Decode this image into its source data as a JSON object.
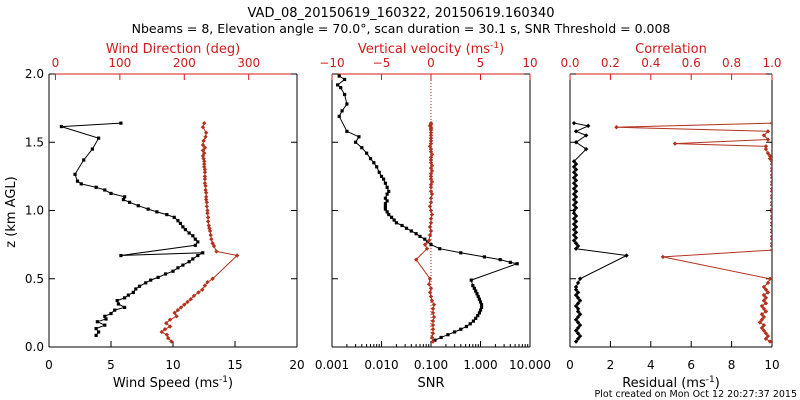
{
  "header": {
    "title_line1": "VAD_08_20150619_160322, 20150619.160340",
    "title_line2": "Nbeams = 8, Elevation angle = 70.0°, scan duration = 30.1 s, SNR Threshold = 0.008"
  },
  "footer": {
    "plot_created": "Plot created on Mon Oct 12 20:27:37 2015"
  },
  "colors": {
    "black_series": "#000000",
    "red_series": "#b3331f",
    "red_axis": "#d11a1a",
    "axis": "#000000"
  },
  "y_axis": {
    "label": "z (km AGL)",
    "range": [
      0.0,
      2.0
    ],
    "ticks": [
      0.0,
      0.5,
      1.0,
      1.5,
      2.0
    ],
    "tick_labels": [
      "0.0",
      "0.5",
      "1.0",
      "1.5",
      "2.0"
    ]
  },
  "chart_data": [
    {
      "type": "line",
      "id": "wind",
      "bottom_axis": {
        "label": "Wind Speed (ms",
        "label_sup": "-1",
        "label_close": ")",
        "range": [
          0,
          20
        ],
        "ticks": [
          0,
          5,
          10,
          15,
          20
        ],
        "tick_labels": [
          "0",
          "5",
          "10",
          "15",
          "20"
        ]
      },
      "top_axis": {
        "label": "Wind Direction (deg)",
        "range": [
          -10,
          375
        ],
        "ticks": [
          0,
          100,
          200,
          300
        ],
        "tick_labels": [
          "0",
          "100",
          "200",
          "300"
        ]
      },
      "series": [
        {
          "name": "Wind Speed",
          "axis": "bottom",
          "color": "black",
          "marker": "square",
          "x": [
            3.8,
            4.0,
            3.8,
            4.5,
            3.9,
            4.6,
            4.5,
            5.0,
            5.3,
            6.1,
            5.6,
            5.5,
            6.1,
            6.4,
            6.8,
            7.0,
            7.3,
            7.8,
            8.2,
            8.8,
            9.4,
            10.0,
            10.4,
            10.8,
            11.3,
            11.6,
            12.0,
            12.4,
            5.8,
            11.8,
            12.0,
            11.8,
            11.6,
            11.3,
            11.0,
            10.8,
            10.6,
            10.4,
            10.1,
            9.5,
            8.7,
            8.0,
            7.2,
            6.5,
            6.0,
            6.1,
            5.0,
            4.5,
            3.8,
            2.6,
            2.3,
            2.1,
            2.8,
            3.5,
            4.0,
            1.0,
            5.8
          ],
          "y": [
            0.085,
            0.11,
            0.135,
            0.16,
            0.185,
            0.205,
            0.225,
            0.245,
            0.27,
            0.29,
            0.315,
            0.34,
            0.36,
            0.38,
            0.4,
            0.425,
            0.445,
            0.47,
            0.49,
            0.51,
            0.535,
            0.555,
            0.58,
            0.6,
            0.625,
            0.645,
            0.67,
            0.69,
            0.67,
            0.745,
            0.77,
            0.79,
            0.815,
            0.835,
            0.86,
            0.88,
            0.905,
            0.925,
            0.95,
            0.97,
            0.99,
            1.01,
            1.035,
            1.06,
            1.08,
            1.1,
            1.125,
            1.15,
            1.17,
            1.195,
            1.215,
            1.265,
            1.37,
            1.45,
            1.53,
            1.615,
            1.64
          ]
        },
        {
          "name": "Wind Direction",
          "axis": "top",
          "color": "red",
          "marker": "diamond",
          "x": [
            180,
            175,
            173,
            165,
            170,
            178,
            172,
            178,
            188,
            185,
            190,
            195,
            200,
            205,
            210,
            215,
            222,
            228,
            232,
            236,
            244,
            282,
            250,
            246,
            244,
            242,
            241,
            240,
            239,
            238,
            237,
            237,
            236,
            236,
            235,
            235,
            234,
            234,
            234,
            233,
            233,
            232,
            232,
            232,
            232,
            232,
            231,
            231,
            231,
            230,
            229,
            231,
            229,
            232,
            229,
            230,
            233,
            234,
            229,
            231
          ],
          "y": [
            0.04,
            0.065,
            0.09,
            0.11,
            0.13,
            0.15,
            0.175,
            0.2,
            0.225,
            0.25,
            0.27,
            0.29,
            0.31,
            0.33,
            0.35,
            0.375,
            0.4,
            0.42,
            0.45,
            0.475,
            0.5,
            0.67,
            0.7,
            0.74,
            0.76,
            0.79,
            0.82,
            0.85,
            0.87,
            0.89,
            0.92,
            0.95,
            0.98,
            1.0,
            1.03,
            1.06,
            1.08,
            1.1,
            1.13,
            1.15,
            1.18,
            1.2,
            1.23,
            1.25,
            1.28,
            1.3,
            1.32,
            1.34,
            1.36,
            1.38,
            1.4,
            1.42,
            1.44,
            1.46,
            1.48,
            1.51,
            1.54,
            1.57,
            1.61,
            1.64
          ]
        }
      ]
    },
    {
      "type": "line",
      "id": "snr",
      "bottom_axis": {
        "label": "SNR",
        "scale": "log",
        "range": [
          0.001,
          10
        ],
        "ticks": [
          0.001,
          0.01,
          0.1,
          1,
          10
        ],
        "tick_labels": [
          "0.001",
          "0.010",
          "0.100",
          "1.000",
          "10.000"
        ]
      },
      "top_axis": {
        "label": "Vertical velocity (ms",
        "label_sup": "-1",
        "label_close": ")",
        "range": [
          -10,
          10
        ],
        "ticks": [
          -10,
          -5,
          0,
          5,
          10
        ],
        "tick_labels": [
          "−10",
          "−5",
          "0",
          "5",
          "10"
        ]
      },
      "series": [
        {
          "name": "SNR",
          "axis": "bottom",
          "color": "black",
          "marker": "square",
          "x": [
            0.12,
            0.16,
            0.22,
            0.3,
            0.4,
            0.52,
            0.62,
            0.72,
            0.8,
            0.88,
            0.95,
            1.0,
            1.05,
            1.05,
            1.0,
            0.95,
            0.9,
            0.85,
            0.8,
            0.75,
            0.7,
            0.65,
            5.5,
            4.0,
            2.5,
            1.2,
            0.4,
            0.15,
            0.1,
            0.085,
            0.075,
            0.06,
            0.05,
            0.04,
            0.032,
            0.026,
            0.02,
            0.018,
            0.016,
            0.014,
            0.013,
            0.012,
            0.012,
            0.012,
            0.013,
            0.012,
            0.013,
            0.014,
            0.013,
            0.012,
            0.011,
            0.01,
            0.009,
            0.008,
            0.007,
            0.006,
            0.005,
            0.004,
            0.003,
            0.0035,
            0.002,
            0.0014,
            0.0016,
            0.002,
            0.0018,
            0.0015,
            0.0013,
            0.0018,
            0.0014
          ],
          "y": [
            0.05,
            0.07,
            0.09,
            0.11,
            0.13,
            0.15,
            0.17,
            0.19,
            0.21,
            0.23,
            0.25,
            0.27,
            0.29,
            0.31,
            0.33,
            0.35,
            0.37,
            0.39,
            0.41,
            0.43,
            0.45,
            0.49,
            0.61,
            0.62,
            0.64,
            0.66,
            0.69,
            0.72,
            0.75,
            0.77,
            0.79,
            0.81,
            0.83,
            0.85,
            0.87,
            0.89,
            0.91,
            0.93,
            0.95,
            0.97,
            0.99,
            1.01,
            1.03,
            1.05,
            1.07,
            1.09,
            1.12,
            1.14,
            1.17,
            1.2,
            1.23,
            1.25,
            1.28,
            1.32,
            1.35,
            1.38,
            1.42,
            1.46,
            1.5,
            1.54,
            1.58,
            1.69,
            1.73,
            1.78,
            1.85,
            1.9,
            1.92,
            1.96,
            1.985
          ]
        },
        {
          "name": "Vertical velocity",
          "axis": "top",
          "color": "red",
          "marker": "diamond",
          "x": [
            0.2,
            0.1,
            0.2,
            0.2,
            0.2,
            0.2,
            0.3,
            0.2,
            0.2,
            0.3,
            0.1,
            0.0,
            -0.1,
            0.0,
            -0.2,
            -0.1,
            -1.5,
            -0.4,
            -0.6,
            -0.2,
            -0.1,
            0.0,
            -0.1,
            0.0,
            0.0,
            0.1,
            0.0,
            -0.1,
            0.0,
            0.0,
            0.1,
            0.0,
            0.0,
            0.0,
            0.1,
            0.0,
            0.0,
            0.0,
            0.1,
            0.0,
            0.1,
            0.0,
            0.0,
            0.0,
            0.1,
            0.0,
            0.0,
            -0.1,
            0.0,
            0.0,
            0.0,
            0.0,
            0.0,
            0.0,
            0.0,
            0.0,
            -0.1,
            0.0,
            0.0
          ],
          "y": [
            0.04,
            0.07,
            0.1,
            0.13,
            0.16,
            0.19,
            0.22,
            0.25,
            0.28,
            0.31,
            0.34,
            0.37,
            0.4,
            0.43,
            0.46,
            0.5,
            0.64,
            0.72,
            0.75,
            0.78,
            0.82,
            0.85,
            0.88,
            0.91,
            0.94,
            0.97,
            1.0,
            1.03,
            1.06,
            1.09,
            1.12,
            1.14,
            1.17,
            1.19,
            1.21,
            1.23,
            1.25,
            1.27,
            1.29,
            1.31,
            1.33,
            1.35,
            1.37,
            1.39,
            1.41,
            1.43,
            1.45,
            1.47,
            1.49,
            1.51,
            1.53,
            1.55,
            1.57,
            1.59,
            1.6,
            1.61,
            1.62,
            1.63,
            1.64
          ]
        }
      ]
    },
    {
      "type": "line",
      "id": "corr",
      "bottom_axis": {
        "label": "Residual (ms",
        "label_sup": "-1",
        "label_close": ")",
        "range": [
          0,
          10
        ],
        "ticks": [
          0,
          2,
          4,
          6,
          8,
          10
        ],
        "tick_labels": [
          "0",
          "2",
          "4",
          "6",
          "8",
          "10"
        ]
      },
      "top_axis": {
        "label": "Correlation",
        "range": [
          0,
          1
        ],
        "ticks": [
          0,
          0.2,
          0.4,
          0.6,
          0.8,
          1.0
        ],
        "tick_labels": [
          "0.0",
          "0.2",
          "0.4",
          "0.6",
          "0.8",
          "1.0"
        ]
      },
      "series": [
        {
          "name": "Residual",
          "axis": "bottom",
          "color": "black",
          "marker": "diamond",
          "x": [
            0.3,
            0.4,
            0.5,
            0.4,
            0.3,
            0.4,
            0.5,
            0.4,
            0.3,
            0.4,
            0.5,
            0.4,
            0.4,
            0.3,
            0.4,
            0.5,
            0.4,
            0.3,
            0.4,
            0.3,
            0.3,
            0.4,
            0.5,
            2.8,
            0.3,
            0.4,
            0.3,
            0.2,
            0.3,
            0.2,
            0.3,
            0.2,
            0.3,
            0.2,
            0.3,
            0.2,
            0.3,
            0.2,
            0.2,
            0.3,
            0.2,
            0.3,
            0.2,
            0.3,
            0.2,
            0.3,
            0.2,
            0.3,
            0.2,
            0.3,
            0.2,
            0.3,
            0.2,
            0.3,
            0.2,
            0.3,
            0.2,
            0.8,
            0.3,
            0.8,
            0.3,
            0.9,
            0.2
          ],
          "y": [
            0.04,
            0.06,
            0.08,
            0.1,
            0.12,
            0.14,
            0.16,
            0.18,
            0.2,
            0.22,
            0.24,
            0.26,
            0.28,
            0.3,
            0.32,
            0.34,
            0.36,
            0.38,
            0.4,
            0.42,
            0.44,
            0.47,
            0.5,
            0.67,
            0.72,
            0.74,
            0.76,
            0.78,
            0.8,
            0.82,
            0.84,
            0.86,
            0.88,
            0.9,
            0.92,
            0.94,
            0.96,
            0.98,
            1.0,
            1.02,
            1.04,
            1.06,
            1.08,
            1.1,
            1.12,
            1.14,
            1.16,
            1.18,
            1.2,
            1.22,
            1.24,
            1.26,
            1.28,
            1.3,
            1.32,
            1.34,
            1.36,
            1.45,
            1.5,
            1.55,
            1.58,
            1.62,
            1.64
          ]
        },
        {
          "name": "Correlation",
          "axis": "top",
          "color": "red",
          "marker": "diamond",
          "x": [
            0.99,
            0.97,
            0.98,
            0.97,
            0.96,
            0.95,
            0.96,
            0.94,
            0.95,
            0.96,
            0.95,
            0.97,
            0.96,
            0.95,
            0.97,
            0.96,
            0.97,
            0.96,
            0.98,
            0.97,
            0.96,
            0.98,
            0.99,
            0.46,
            1.0,
            1.0,
            1.0,
            1.0,
            1.0,
            1.0,
            1.0,
            1.0,
            1.0,
            1.0,
            1.0,
            1.0,
            1.0,
            1.0,
            1.0,
            1.0,
            1.0,
            1.0,
            1.0,
            1.0,
            1.0,
            1.0,
            1.0,
            1.0,
            1.0,
            1.0,
            1.0,
            0.99,
            0.99,
            0.98,
            0.97,
            0.97,
            0.52,
            0.98,
            0.96,
            0.98,
            0.23,
            1.0
          ],
          "y": [
            0.04,
            0.06,
            0.08,
            0.1,
            0.12,
            0.14,
            0.16,
            0.18,
            0.2,
            0.22,
            0.24,
            0.26,
            0.28,
            0.3,
            0.32,
            0.34,
            0.36,
            0.38,
            0.4,
            0.42,
            0.44,
            0.47,
            0.5,
            0.66,
            0.71,
            0.74,
            0.76,
            0.79,
            0.81,
            0.84,
            0.86,
            0.89,
            0.91,
            0.94,
            0.96,
            0.99,
            1.01,
            1.04,
            1.06,
            1.09,
            1.11,
            1.14,
            1.16,
            1.19,
            1.21,
            1.24,
            1.26,
            1.29,
            1.31,
            1.34,
            1.36,
            1.38,
            1.4,
            1.42,
            1.45,
            1.47,
            1.49,
            1.52,
            1.55,
            1.58,
            1.61,
            1.64
          ]
        }
      ]
    }
  ]
}
